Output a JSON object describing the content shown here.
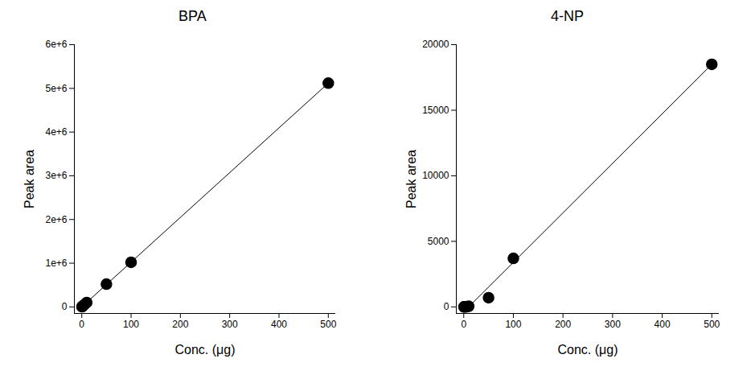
{
  "chart_data": [
    {
      "type": "scatter",
      "title": "BPA",
      "x_label": "Conc. (μg)",
      "y_label": "Peak area",
      "xlim": [
        -15,
        515
      ],
      "xticks": [
        0,
        100,
        200,
        300,
        400,
        500
      ],
      "ylim": [
        -150000,
        6000000
      ],
      "yticks": [
        0,
        {
          "value": 1000000,
          "label": "1e+6"
        },
        {
          "value": 2000000,
          "label": "2e+6"
        },
        {
          "value": 3000000,
          "label": "3e+6"
        },
        {
          "value": 4000000,
          "label": "4e+6"
        },
        {
          "value": 5000000,
          "label": "5e+6"
        },
        {
          "value": 6000000,
          "label": "6e+6"
        }
      ],
      "series": [
        {
          "type": "scatter",
          "marker": "circle",
          "color": "#000000",
          "x": [
            0.5,
            1,
            5,
            10,
            50,
            100,
            500
          ],
          "values": [
            5000,
            10000,
            50000,
            100000,
            520000,
            1020000,
            5120000
          ]
        },
        {
          "type": "line",
          "line_style": "solid",
          "color": "#000000",
          "x": [
            0,
            500
          ],
          "values": [
            0,
            5120000
          ]
        }
      ]
    },
    {
      "type": "scatter",
      "title": "4-NP",
      "x_label": "Conc. (μg)",
      "y_label": "Peak area",
      "xlim": [
        -15,
        515
      ],
      "xticks": [
        0,
        100,
        200,
        300,
        400,
        500
      ],
      "ylim": [
        -500,
        20000
      ],
      "yticks": [
        0,
        5000,
        10000,
        15000,
        20000
      ],
      "series": [
        {
          "type": "scatter",
          "marker": "circle",
          "color": "#000000",
          "x": [
            0.5,
            1,
            5,
            10,
            50,
            100,
            500
          ],
          "values": [
            0,
            0,
            0,
            50,
            700,
            3700,
            18500
          ]
        },
        {
          "type": "line",
          "line_style": "solid",
          "color": "#000000",
          "x": [
            10,
            500
          ],
          "values": [
            0,
            18500
          ]
        }
      ]
    }
  ]
}
